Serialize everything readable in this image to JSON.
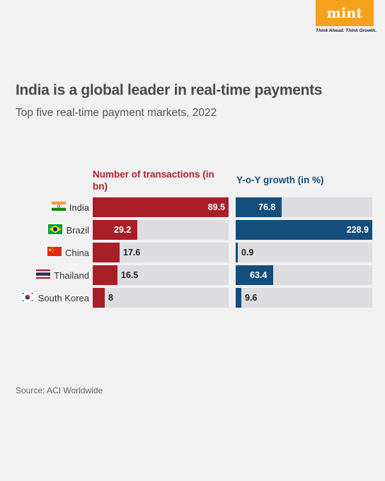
{
  "brand": {
    "logo": "mint",
    "tagline": "Think Ahead. Think Growth."
  },
  "title": "India is a global leader in real-time payments",
  "subtitle": "Top five real-time payment markets, 2022",
  "source": "Source: ACI Worldwide",
  "colors": {
    "transactions": "#a81f28",
    "growth": "#144e7c",
    "track": "#dcdce1"
  },
  "chart_data": {
    "type": "bar",
    "categories": [
      "India",
      "Brazil",
      "China",
      "Thailand",
      "South Korea"
    ],
    "series": [
      {
        "name": "Number of transactions (in bn)",
        "values": [
          89.5,
          29.2,
          17.6,
          16.5,
          8
        ],
        "labels": [
          "89.5",
          "29.2",
          "17.6",
          "16.5",
          "8"
        ]
      },
      {
        "name": "Y-o-Y growth (in %)",
        "values": [
          76.8,
          228.9,
          0.9,
          63.4,
          9.6
        ],
        "labels": [
          "76.8",
          "228.9",
          "0.9",
          "63.4",
          "9.6"
        ]
      }
    ],
    "max": [
      89.5,
      228.9
    ]
  },
  "flags": [
    "india-flag-icon",
    "brazil-flag-icon",
    "china-flag-icon",
    "thailand-flag-icon",
    "south-korea-flag-icon"
  ]
}
